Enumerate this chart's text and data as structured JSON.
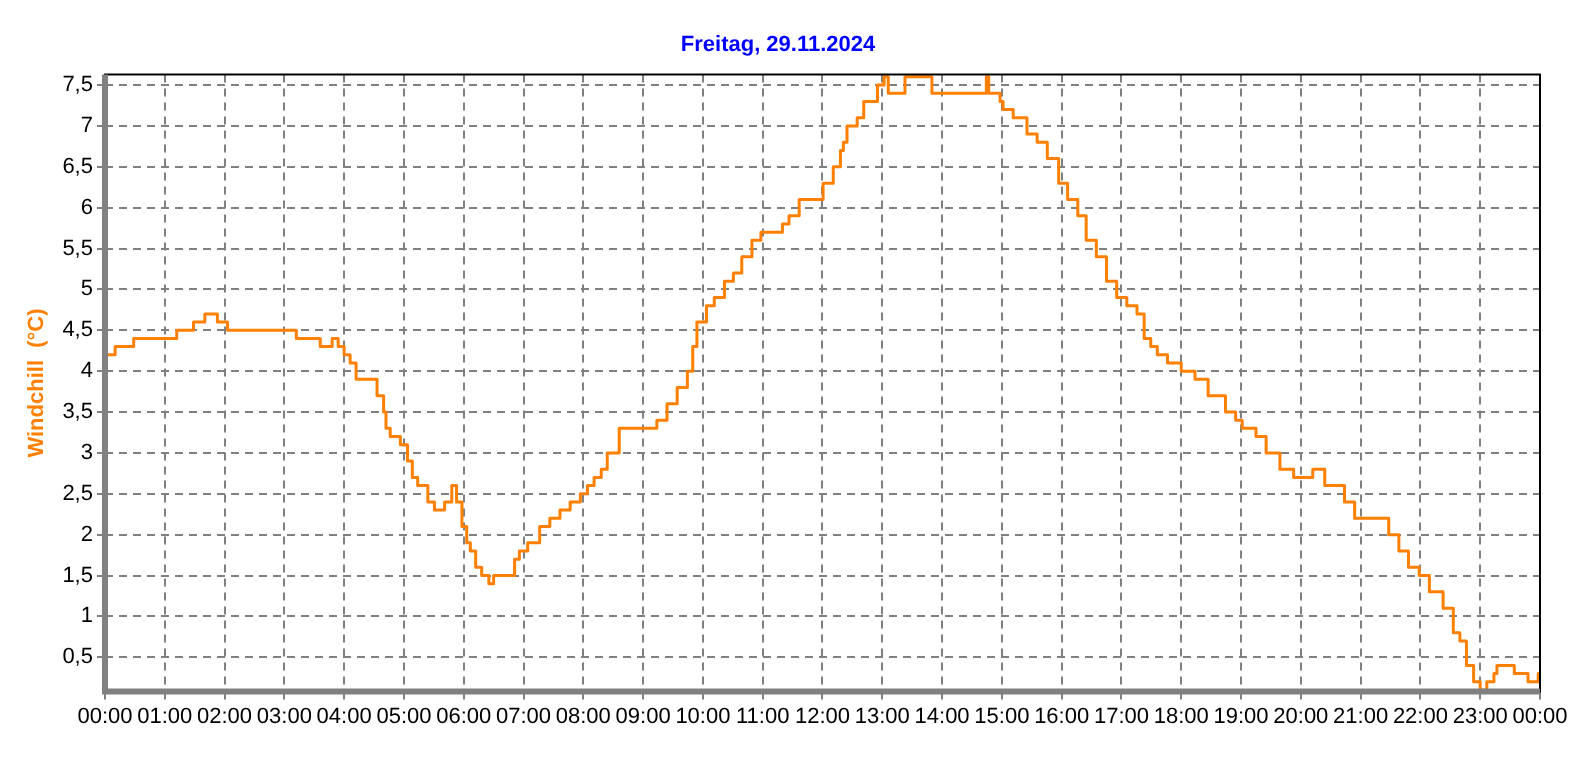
{
  "chart_data": {
    "type": "step",
    "title": "Freitag, 29.11.2024",
    "ylabel": "Windchill  (°C)",
    "x": [
      0,
      0.17,
      0.48,
      1.2,
      1.48,
      1.67,
      1.88,
      2.05,
      3.2,
      3.6,
      3.8,
      3.9,
      4.0,
      4.1,
      4.2,
      4.55,
      4.66,
      4.7,
      4.77,
      4.94,
      5.06,
      5.14,
      5.23,
      5.4,
      5.51,
      5.68,
      5.8,
      5.88,
      5.97,
      6.05,
      6.11,
      6.2,
      6.3,
      6.42,
      6.5,
      6.85,
      6.93,
      7.07,
      7.27,
      7.44,
      7.61,
      7.78,
      7.95,
      8.07,
      8.18,
      8.3,
      8.4,
      8.6,
      8.89,
      9.23,
      9.4,
      9.57,
      9.74,
      9.83,
      9.9,
      10.06,
      10.19,
      10.36,
      10.51,
      10.65,
      10.82,
      10.97,
      11.33,
      11.44,
      11.61,
      11.69,
      12.01,
      12.18,
      12.3,
      12.35,
      12.41,
      12.58,
      12.69,
      12.92,
      13.03,
      13.1,
      13.38,
      13.42,
      13.5,
      13.83,
      13.89,
      14.17,
      14.74,
      14.78,
      14.97,
      15.02,
      15.19,
      15.42,
      15.59,
      15.76,
      15.95,
      16.1,
      16.27,
      16.41,
      16.58,
      16.75,
      16.92,
      17.09,
      17.26,
      17.38,
      17.49,
      17.6,
      17.77,
      18.0,
      18.23,
      18.45,
      18.74,
      18.91,
      19.02,
      19.25,
      19.42,
      19.65,
      19.88,
      20.2,
      20.33,
      20.4,
      20.73,
      20.9,
      21.07,
      21.47,
      21.64,
      21.8,
      21.98,
      22.15,
      22.38,
      22.55,
      22.66,
      22.77,
      22.89,
      23.0,
      23.11,
      23.23,
      23.28,
      23.57,
      23.8,
      23.85,
      23.97,
      24
    ],
    "series": [
      {
        "color": "#ff8000",
        "values": [
          4.1,
          4.2,
          4.3,
          4.4,
          4.5,
          4.6,
          4.7,
          4.6,
          4.5,
          4.4,
          4.3,
          4.4,
          4.3,
          4.2,
          4.1,
          3.9,
          3.7,
          3.5,
          3.3,
          3.2,
          3.1,
          2.9,
          2.7,
          2.6,
          2.4,
          2.3,
          2.4,
          2.6,
          2.4,
          2.1,
          1.9,
          1.8,
          1.6,
          1.5,
          1.4,
          1.5,
          1.7,
          1.8,
          1.9,
          2.1,
          2.2,
          2.3,
          2.4,
          2.5,
          2.6,
          2.7,
          2.8,
          3.0,
          3.3,
          3.3,
          3.4,
          3.6,
          3.8,
          4.0,
          4.3,
          4.6,
          4.8,
          4.9,
          5.1,
          5.2,
          5.4,
          5.6,
          5.7,
          5.8,
          5.9,
          6.1,
          6.1,
          6.3,
          6.5,
          6.7,
          6.8,
          7.0,
          7.1,
          7.3,
          7.5,
          7.6,
          7.4,
          7.6,
          7.6,
          7.6,
          7.4,
          7.4,
          7.4,
          7.6,
          7.4,
          7.3,
          7.2,
          7.1,
          6.9,
          6.8,
          6.6,
          6.3,
          6.1,
          5.9,
          5.6,
          5.4,
          5.1,
          4.9,
          4.8,
          4.7,
          4.4,
          4.3,
          4.2,
          4.1,
          4.0,
          3.9,
          3.7,
          3.5,
          3.4,
          3.3,
          3.2,
          3.0,
          2.8,
          2.7,
          2.8,
          2.8,
          2.6,
          2.4,
          2.2,
          2.2,
          2.0,
          1.8,
          1.6,
          1.5,
          1.3,
          1.1,
          0.8,
          0.7,
          0.4,
          0.2,
          0.1,
          0.2,
          0.3,
          0.4,
          0.3,
          0.2,
          0.2,
          0.3
        ]
      }
    ],
    "xlim": [
      0,
      24
    ],
    "xticks": [
      {
        "value": 0,
        "label": "00:00"
      },
      {
        "value": 1,
        "label": "01:00"
      },
      {
        "value": 2,
        "label": "02:00"
      },
      {
        "value": 3,
        "label": "03:00"
      },
      {
        "value": 4,
        "label": "04:00"
      },
      {
        "value": 5,
        "label": "05:00"
      },
      {
        "value": 6,
        "label": "06:00"
      },
      {
        "value": 7,
        "label": "07:00"
      },
      {
        "value": 8,
        "label": "08:00"
      },
      {
        "value": 9,
        "label": "09:00"
      },
      {
        "value": 10,
        "label": "10:00"
      },
      {
        "value": 11,
        "label": "11:00"
      },
      {
        "value": 12,
        "label": "12:00"
      },
      {
        "value": 13,
        "label": "13:00"
      },
      {
        "value": 14,
        "label": "14:00"
      },
      {
        "value": 15,
        "label": "15:00"
      },
      {
        "value": 16,
        "label": "16:00"
      },
      {
        "value": 17,
        "label": "17:00"
      },
      {
        "value": 18,
        "label": "18:00"
      },
      {
        "value": 19,
        "label": "19:00"
      },
      {
        "value": 20,
        "label": "20:00"
      },
      {
        "value": 21,
        "label": "21:00"
      },
      {
        "value": 22,
        "label": "22:00"
      },
      {
        "value": 23,
        "label": "23:00"
      },
      {
        "value": 24,
        "label": "00:00"
      }
    ],
    "ylim": [
      0.08,
      7.63
    ],
    "yticks": [
      {
        "value": 0.5,
        "label": "0,5"
      },
      1,
      {
        "value": 1.5,
        "label": "1,5"
      },
      2,
      {
        "value": 2.5,
        "label": "2,5"
      },
      3,
      {
        "value": 3.5,
        "label": "3,5"
      },
      4,
      {
        "value": 4.5,
        "label": "4,5"
      },
      5,
      {
        "value": 5.5,
        "label": "5,5"
      },
      6,
      {
        "value": 6.5,
        "label": "6,5"
      },
      7,
      {
        "value": 7.5,
        "label": "7,5"
      }
    ],
    "grid": true,
    "marker": "none",
    "line_style": "solid"
  }
}
